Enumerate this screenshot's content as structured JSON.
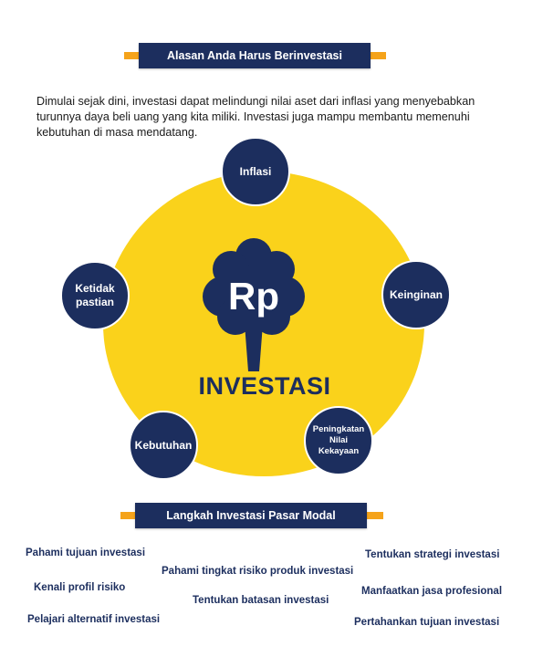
{
  "header": {
    "title": "Alasan Anda Harus Berinvestasi"
  },
  "intro": {
    "text": "Dimulai sejak dini, investasi dapat melindungi nilai aset dari inflasi yang menyebabkan turunnya daya beli uang yang kita miliki. Investasi juga mampu membantu memenuhi kebutuhan di masa mendatang."
  },
  "diagram": {
    "center_symbol": "Rp",
    "center_label": "INVESTASI",
    "nodes": [
      "Inflasi",
      "Keinginan",
      "Peningkatan\nNilai\nKekayaan",
      "Kebutuhan",
      "Ketidak\npastian"
    ]
  },
  "steps_section": {
    "title": "Langkah Investasi Pasar Modal",
    "steps": [
      "Pahami tujuan investasi",
      "Kenali profil risiko",
      "Pelajari alternatif investasi",
      "Pahami tingkat risiko produk investasi",
      "Tentukan batasan investasi",
      "Tentukan strategi investasi",
      "Manfaatkan jasa profesional",
      "Pertahankan tujuan investasi"
    ]
  },
  "colors": {
    "navy": "#1c2e5e",
    "yellow": "#fad21b",
    "orange": "#f5a31a"
  }
}
